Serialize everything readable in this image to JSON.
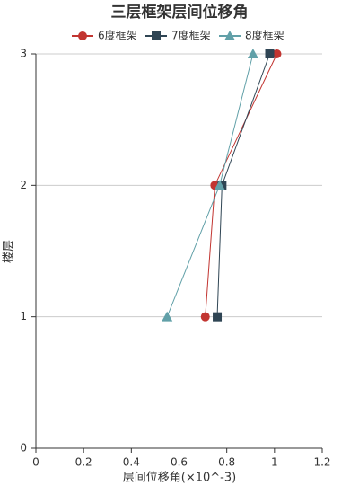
{
  "chart_data": {
    "type": "line",
    "title": "三层框架层间位移角",
    "x_label": "层间位移角(×10^-3)",
    "y_label": "楼层",
    "xlim": [
      0,
      1.2
    ],
    "xticks": [
      0,
      0.2,
      0.4,
      0.6,
      0.8,
      1,
      1.2
    ],
    "ylim": [
      0,
      3
    ],
    "yticks": [
      0,
      1,
      2,
      3
    ],
    "grid": true,
    "legend": "top",
    "series": [
      {
        "name": "6度框架",
        "color": "#c23531",
        "marker": "circle",
        "x": [
          0.71,
          0.75,
          1.01
        ],
        "values": [
          1,
          2,
          3
        ]
      },
      {
        "name": "7度框架",
        "color": "#2f4554",
        "marker": "square",
        "x": [
          0.76,
          0.78,
          0.98
        ],
        "values": [
          1,
          2,
          3
        ]
      },
      {
        "name": "8度框架",
        "color": "#61a0a8",
        "marker": "triangle",
        "x": [
          0.55,
          0.77,
          0.91
        ],
        "values": [
          1,
          2,
          3
        ]
      }
    ]
  }
}
